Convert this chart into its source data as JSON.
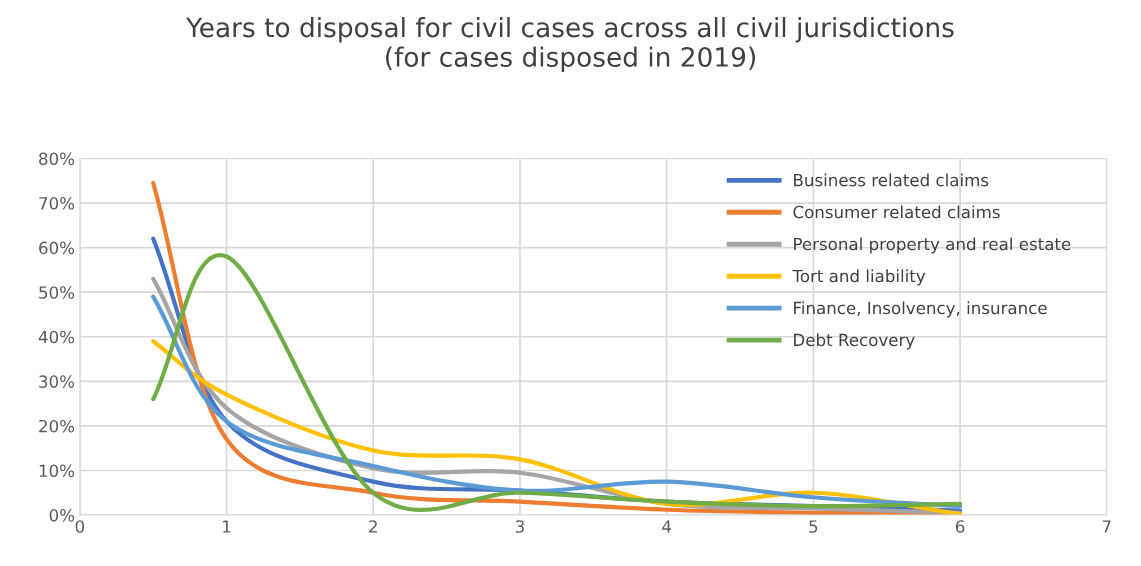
{
  "chart_data": {
    "type": "line",
    "title": "Years to disposal for civil cases across all civil jurisdictions\n(for cases disposed in 2019)",
    "x": [
      0.5,
      1,
      2,
      3,
      4,
      5,
      6
    ],
    "series": [
      {
        "name": "Business related claims",
        "color": "#4472c4",
        "values": [
          62,
          21,
          7.5,
          5.5,
          3,
          2,
          1
        ]
      },
      {
        "name": "Consumer related claims",
        "color": "#ed7d31",
        "values": [
          74.5,
          17,
          5,
          3,
          1.2,
          0.5,
          0.3
        ]
      },
      {
        "name": "Personal property and real estate",
        "color": "#a5a5a5",
        "values": [
          53,
          24,
          10.5,
          9.5,
          2.5,
          1.5,
          0.5
        ]
      },
      {
        "name": "Tort and liability",
        "color": "#ffc000",
        "values": [
          39,
          27,
          14.5,
          12.5,
          2.5,
          5,
          0.2
        ]
      },
      {
        "name": "Finance, Insolvency, insurance",
        "color": "#5b9bd5",
        "values": [
          49,
          21,
          11,
          5.5,
          7.5,
          4,
          2
        ]
      },
      {
        "name": "Debt Recovery",
        "color": "#70ad47",
        "values": [
          26,
          58,
          5,
          5,
          3,
          2,
          2.5
        ]
      }
    ],
    "xlim": [
      0,
      7
    ],
    "xticks": [
      0,
      1,
      2,
      3,
      4,
      5,
      6,
      7
    ],
    "ylim": [
      0,
      80
    ],
    "yticks": [
      {
        "value": 0,
        "label": "0%"
      },
      {
        "value": 10,
        "label": "10%"
      },
      {
        "value": 20,
        "label": "20%"
      },
      {
        "value": 30,
        "label": "30%"
      },
      {
        "value": 40,
        "label": "40%"
      },
      {
        "value": 50,
        "label": "50%"
      },
      {
        "value": 60,
        "label": "60%"
      },
      {
        "value": 70,
        "label": "70%"
      },
      {
        "value": 80,
        "label": "80%"
      }
    ],
    "grid": true,
    "legend": "top right",
    "marker": "none",
    "line_style": "solid"
  }
}
